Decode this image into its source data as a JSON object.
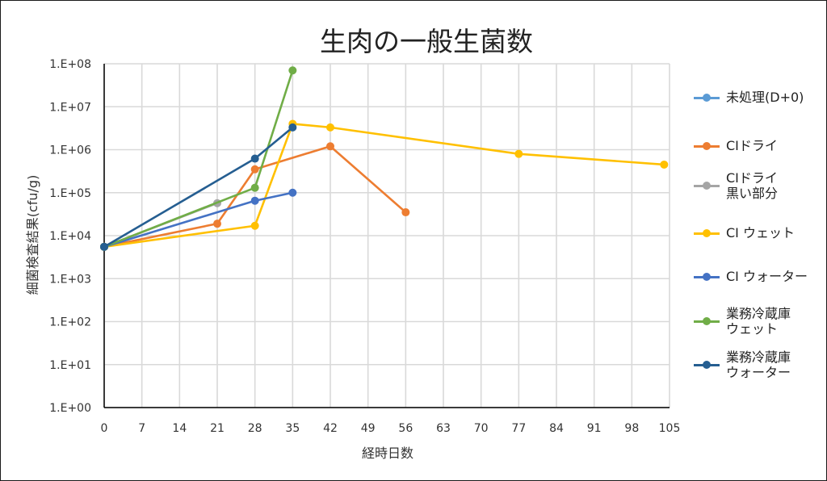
{
  "chart_data": {
    "type": "line",
    "title": "生肉の一般生菌数",
    "xlabel": "経時日数",
    "ylabel": "細菌検査結果(cfu/g)",
    "x_ticks": [
      0,
      7,
      14,
      21,
      28,
      35,
      42,
      49,
      56,
      63,
      70,
      77,
      84,
      91,
      98,
      105
    ],
    "x_tick_labels": [
      "0",
      "7",
      "14",
      "21",
      "28",
      "35",
      "42",
      "49",
      "56",
      "63",
      "70",
      "77",
      "84",
      "91",
      "98",
      "105"
    ],
    "xlim": [
      0,
      105
    ],
    "y_scale": "log",
    "ylim": [
      1,
      100000000
    ],
    "y_ticks": [
      1,
      10,
      100,
      1000,
      10000,
      100000,
      1000000,
      10000000,
      100000000
    ],
    "y_tick_labels": [
      "1.E+00",
      "1.E+01",
      "1.E+02",
      "1.E+03",
      "1.E+04",
      "1.E+05",
      "1.E+06",
      "1.E+07",
      "1.E+08"
    ],
    "grid": true,
    "legend_position": "right",
    "series": [
      {
        "name": "未処理(D+0)",
        "color": "#5B9BD5",
        "x": [
          0
        ],
        "values": [
          5500
        ]
      },
      {
        "name": "CIドライ",
        "color": "#ED7D31",
        "x": [
          0,
          21,
          28,
          42,
          56
        ],
        "values": [
          5500,
          19000,
          350000,
          1200000,
          35000
        ]
      },
      {
        "name": "CIドライ\n黒い部分",
        "color": "#A5A5A5",
        "x": [
          0,
          21
        ],
        "values": [
          5500,
          57000
        ]
      },
      {
        "name": "CI ウェット",
        "color": "#FFC000",
        "x": [
          0,
          28,
          35,
          42,
          77,
          104
        ],
        "values": [
          5500,
          17000,
          4000000,
          3300000,
          800000,
          450000
        ]
      },
      {
        "name": "CI ウォーター",
        "color": "#4472C4",
        "x": [
          0,
          28,
          35
        ],
        "values": [
          5500,
          65000,
          100000
        ]
      },
      {
        "name": "業務冷蔵庫\nウェット",
        "color": "#70AD47",
        "x": [
          0,
          28,
          35
        ],
        "values": [
          5500,
          130000,
          70000000
        ]
      },
      {
        "name": "業務冷蔵庫\nウォーター",
        "color": "#255E91",
        "x": [
          0,
          28,
          35
        ],
        "values": [
          5500,
          620000,
          3300000
        ]
      }
    ]
  }
}
